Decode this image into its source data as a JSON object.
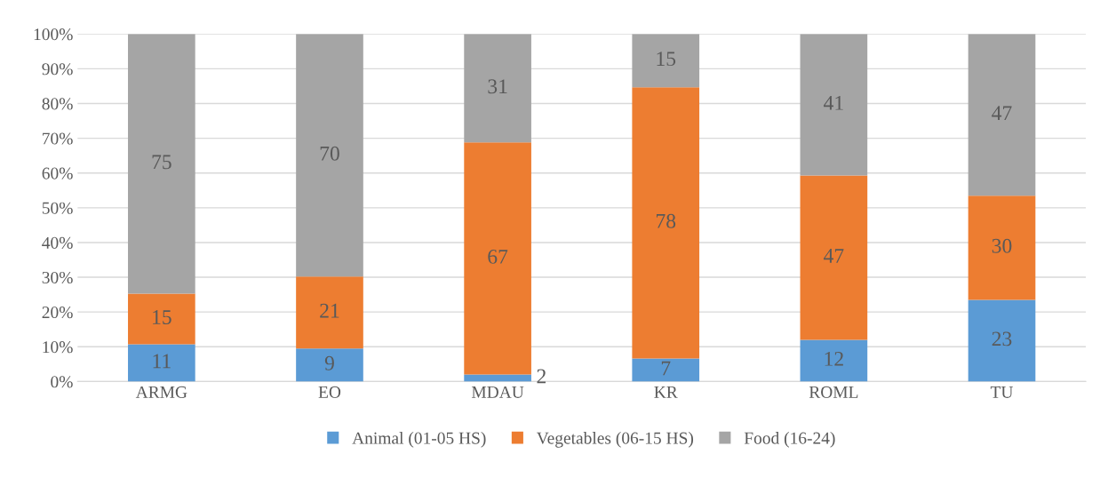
{
  "chart_data": {
    "type": "bar",
    "stacked": true,
    "categories": [
      "ARMG",
      "EO",
      "MDAU",
      "KR",
      "ROML",
      "TU"
    ],
    "series": [
      {
        "name": "Animal (01-05 HS)",
        "color": "#5b9bd5",
        "values": [
          10.7,
          9.5,
          2.0,
          6.6,
          12.0,
          23.5
        ],
        "value_labels": [
          "11",
          "9",
          "2",
          "7",
          "12",
          "23"
        ]
      },
      {
        "name": "Vegetables (06-15 HS)",
        "color": "#ed7d31",
        "values": [
          14.6,
          20.7,
          66.8,
          78.1,
          47.3,
          30.0
        ],
        "value_labels": [
          "15",
          "21",
          "67",
          "78",
          "47",
          "30"
        ]
      },
      {
        "name": "Food (16-24)",
        "color": "#a5a5a5",
        "values": [
          74.7,
          69.8,
          31.2,
          15.3,
          40.7,
          46.5
        ],
        "value_labels": [
          "75",
          "70",
          "31",
          "15",
          "41",
          "47"
        ]
      }
    ],
    "ylim": [
      0,
      100
    ],
    "yticks": [
      {
        "value": 0,
        "label": "0%"
      },
      {
        "value": 10,
        "label": "10%"
      },
      {
        "value": 20,
        "label": "20%"
      },
      {
        "value": 30,
        "label": "30%"
      },
      {
        "value": 40,
        "label": "40%"
      },
      {
        "value": 50,
        "label": "50%"
      },
      {
        "value": 60,
        "label": "60%"
      },
      {
        "value": 70,
        "label": "70%"
      },
      {
        "value": 80,
        "label": "80%"
      },
      {
        "value": 90,
        "label": "90%"
      },
      {
        "value": 100,
        "label": "100%"
      }
    ],
    "grid": "y",
    "legend": "bottom"
  }
}
